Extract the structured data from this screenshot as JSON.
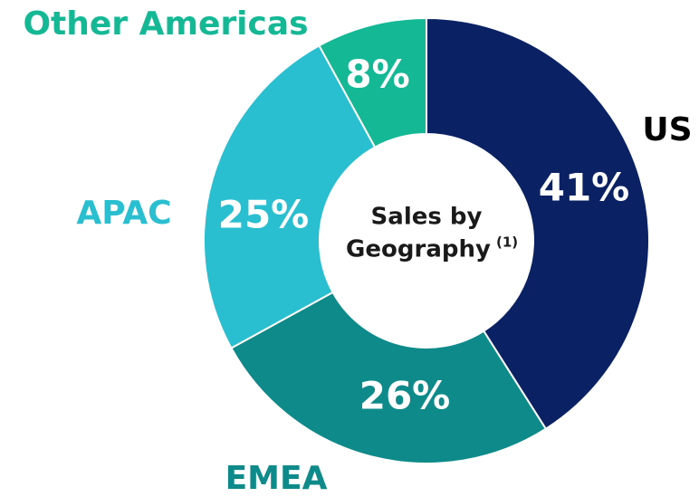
{
  "chart_data": {
    "type": "donut",
    "title_lines": [
      "Sales by",
      "Geography"
    ],
    "title_superscript": "(1)",
    "categories": [
      "US",
      "EMEA",
      "APAC",
      "Other Americas"
    ],
    "values": [
      41,
      26,
      25,
      8
    ],
    "value_labels": [
      "41%",
      "26%",
      "25%",
      "8%"
    ],
    "colors": [
      "#0a2263",
      "#0e8a8a",
      "#29bfd0",
      "#15b895"
    ],
    "label_colors": [
      "#000000",
      "#0e8a8a",
      "#29bfd0",
      "#15b895"
    ]
  }
}
